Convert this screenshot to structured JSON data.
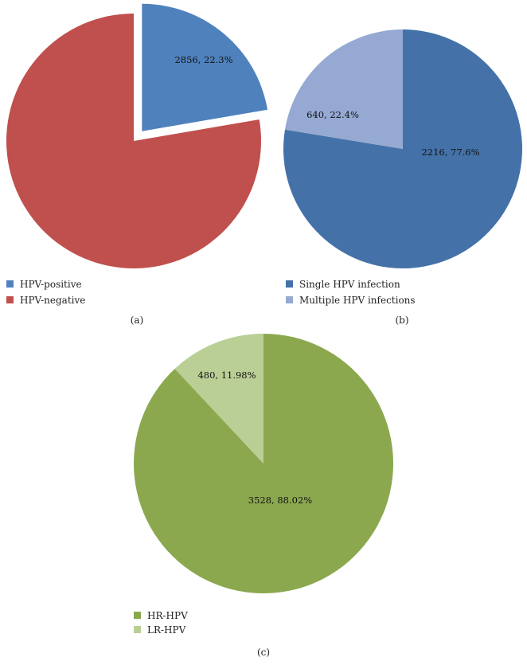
{
  "chart_data": [
    {
      "type": "pie",
      "panel": "(a)",
      "slices": [
        {
          "name": "HPV-positive",
          "value": 2856,
          "percent": "22.3%",
          "label": "2856, 22.3%",
          "color": "#4F81BD",
          "exploded": true
        },
        {
          "name": "HPV-negative",
          "value": 9951,
          "percent": "77.7%",
          "label": "",
          "color": "#C0504D",
          "exploded": false
        }
      ],
      "legend_position": "bottom-left"
    },
    {
      "type": "pie",
      "panel": "(b)",
      "slices": [
        {
          "name": "Single HPV infection",
          "value": 2216,
          "percent": "77.6%",
          "label": "2216, 77.6%",
          "color": "#4472A8",
          "exploded": false
        },
        {
          "name": "Multiple HPV infections",
          "value": 640,
          "percent": "22.4%",
          "label": "640, 22.4%",
          "color": "#95A9D3",
          "exploded": false
        }
      ],
      "legend_position": "bottom-left"
    },
    {
      "type": "pie",
      "panel": "(c)",
      "slices": [
        {
          "name": "HR-HPV",
          "value": 3528,
          "percent": "88.02%",
          "label": "3528, 88.02%",
          "color": "#8BA84E",
          "exploded": false
        },
        {
          "name": "LR-HPV",
          "value": 480,
          "percent": "11.98%",
          "label": "480, 11.98%",
          "color": "#BACF95",
          "exploded": false
        }
      ],
      "legend_position": "bottom-left"
    }
  ]
}
